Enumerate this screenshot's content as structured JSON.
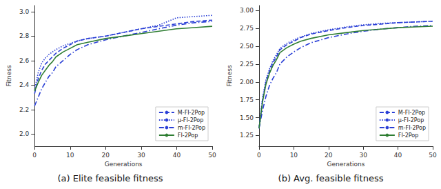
{
  "chart_data": [
    {
      "type": "line",
      "title": "(a) Elite feasible fitness",
      "x_label": "Generations",
      "y_label": "Fitness",
      "x": [
        0,
        1,
        2,
        3,
        4,
        5,
        6,
        8,
        10,
        12,
        15,
        20,
        25,
        30,
        35,
        40,
        45,
        50
      ],
      "xlim": [
        0,
        50
      ],
      "xticks": [
        0,
        10,
        20,
        30,
        40,
        50
      ],
      "ylim": [
        1.9,
        3.05
      ],
      "yticks": [
        {
          "value": 2,
          "label": "2.0"
        },
        2.2,
        2.4,
        2.6,
        2.8,
        {
          "value": 3,
          "label": "3.0"
        }
      ],
      "grid": false,
      "legend": "lower right",
      "series": [
        {
          "name": "M-FI-2Pop",
          "color": "#2a3fd6",
          "line_style": "dashed",
          "values": [
            2.33,
            2.45,
            2.52,
            2.57,
            2.6,
            2.63,
            2.66,
            2.7,
            2.73,
            2.76,
            2.78,
            2.8,
            2.83,
            2.86,
            2.88,
            2.9,
            2.92,
            2.93
          ]
        },
        {
          "name": "μ-FI-2Pop",
          "color": "#2a3fd6",
          "line_style": "dotted",
          "values": [
            2.36,
            2.5,
            2.58,
            2.62,
            2.65,
            2.67,
            2.69,
            2.72,
            2.74,
            2.76,
            2.78,
            2.8,
            2.83,
            2.86,
            2.89,
            2.95,
            2.96,
            2.97
          ]
        },
        {
          "name": "m-FI-2Pop",
          "color": "#2a3fd6",
          "line_style": "dashdot",
          "values": [
            2.23,
            2.3,
            2.37,
            2.42,
            2.47,
            2.5,
            2.55,
            2.6,
            2.65,
            2.69,
            2.73,
            2.77,
            2.8,
            2.83,
            2.86,
            2.89,
            2.91,
            2.92
          ]
        },
        {
          "name": "FI-2Pop",
          "color": "#2e7d32",
          "line_style": "solid",
          "values": [
            2.35,
            2.42,
            2.48,
            2.52,
            2.56,
            2.59,
            2.63,
            2.67,
            2.7,
            2.73,
            2.75,
            2.78,
            2.8,
            2.82,
            2.84,
            2.86,
            2.87,
            2.88
          ]
        }
      ]
    },
    {
      "type": "line",
      "title": "(b) Avg. feasible fitness",
      "x_label": "Generations",
      "y_label": "Fitness",
      "x": [
        0,
        1,
        2,
        3,
        4,
        5,
        6,
        8,
        10,
        12,
        15,
        20,
        25,
        30,
        35,
        40,
        45,
        50
      ],
      "xlim": [
        0,
        50
      ],
      "xticks": [
        0,
        10,
        20,
        30,
        40,
        50
      ],
      "ylim": [
        1.1,
        3.07
      ],
      "yticks": [
        1.25,
        {
          "value": 1.5,
          "label": "1.50"
        },
        1.75,
        {
          "value": 2,
          "label": "2.00"
        },
        2.25,
        {
          "value": 2.5,
          "label": "2.50"
        },
        2.75,
        {
          "value": 3,
          "label": "3.00"
        }
      ],
      "grid": false,
      "legend": "lower right",
      "series": [
        {
          "name": "M-FI-2Pop",
          "color": "#2a3fd6",
          "line_style": "dashed",
          "values": [
            1.35,
            1.75,
            2.0,
            2.15,
            2.27,
            2.35,
            2.45,
            2.52,
            2.57,
            2.62,
            2.67,
            2.72,
            2.76,
            2.79,
            2.81,
            2.83,
            2.84,
            2.85
          ]
        },
        {
          "name": "μ-FI-2Pop",
          "color": "#2a3fd6",
          "line_style": "dotted",
          "values": [
            1.35,
            1.78,
            2.03,
            2.18,
            2.3,
            2.38,
            2.47,
            2.54,
            2.59,
            2.63,
            2.68,
            2.73,
            2.77,
            2.8,
            2.82,
            2.83,
            2.84,
            2.85
          ]
        },
        {
          "name": "m-FI-2Pop",
          "color": "#2a3fd6",
          "line_style": "dashdot",
          "values": [
            1.35,
            1.6,
            1.8,
            1.95,
            2.05,
            2.13,
            2.25,
            2.35,
            2.42,
            2.48,
            2.55,
            2.62,
            2.67,
            2.71,
            2.74,
            2.76,
            2.78,
            2.79
          ]
        },
        {
          "name": "FI-2Pop",
          "color": "#2e7d32",
          "line_style": "solid",
          "values": [
            1.35,
            1.72,
            1.97,
            2.12,
            2.23,
            2.31,
            2.41,
            2.48,
            2.53,
            2.57,
            2.61,
            2.66,
            2.69,
            2.72,
            2.74,
            2.76,
            2.77,
            2.78
          ]
        }
      ]
    }
  ]
}
